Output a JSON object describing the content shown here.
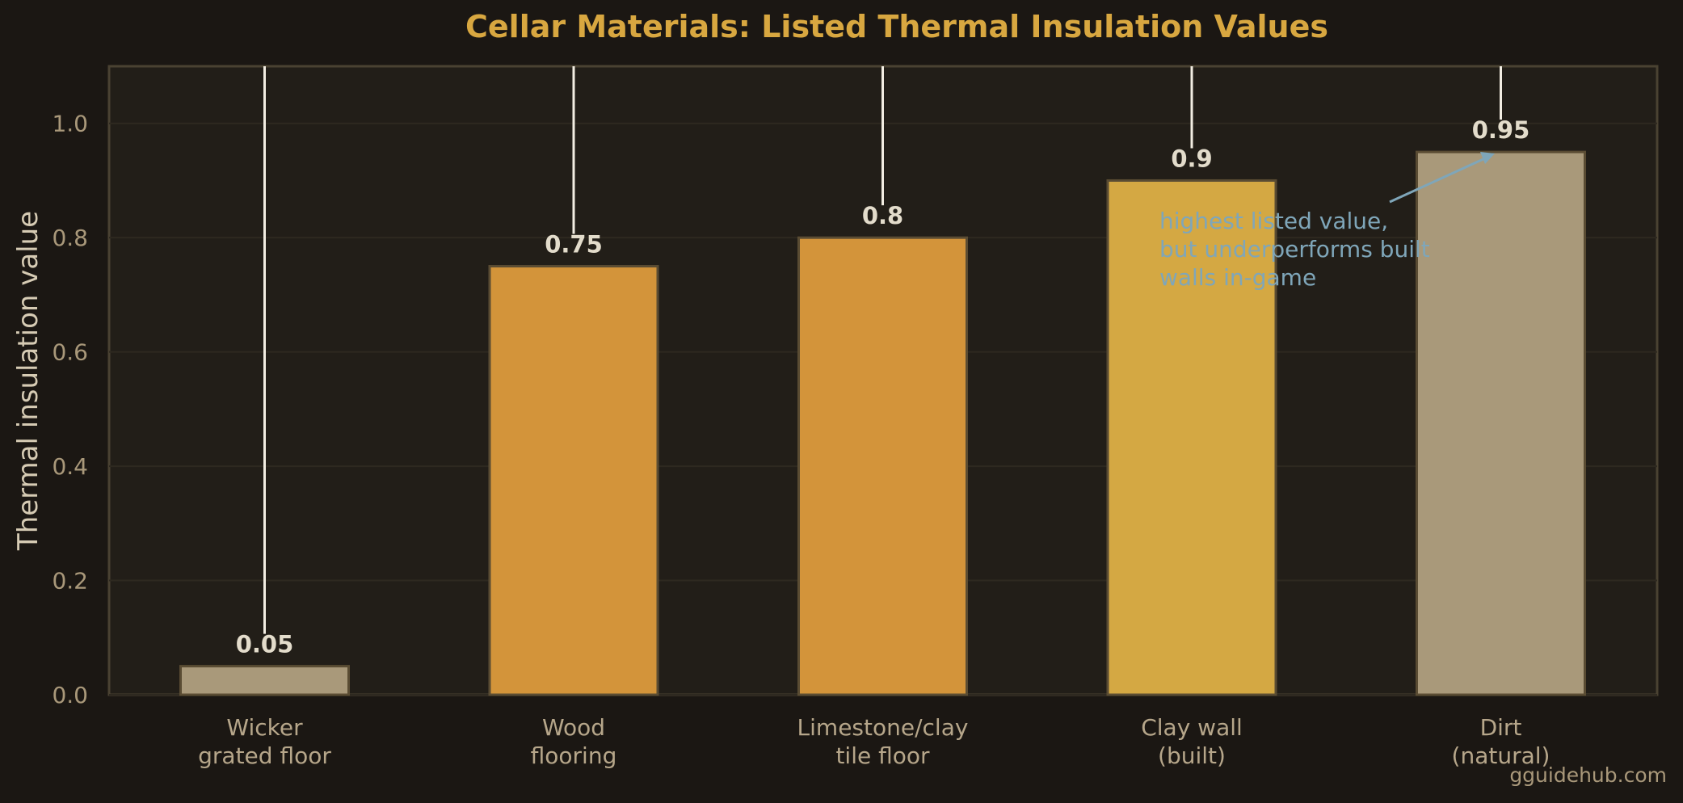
{
  "chart_data": {
    "type": "bar",
    "title": "Cellar Materials: Listed Thermal Insulation Values",
    "xlabel": "",
    "ylabel": "Thermal insulation value",
    "ylim": [
      0,
      1.1
    ],
    "yticks": [
      "0.0",
      "0.2",
      "0.4",
      "0.6",
      "0.8",
      "1.0"
    ],
    "categories": [
      [
        "Wicker",
        "grated floor"
      ],
      [
        "Wood",
        "flooring"
      ],
      [
        "Limestone/clay",
        "tile floor"
      ],
      [
        "Clay wall",
        "(built)"
      ],
      [
        "Dirt",
        "(natural)"
      ]
    ],
    "values": [
      0.05,
      0.75,
      0.8,
      0.9,
      0.95
    ],
    "value_labels": [
      "0.05",
      "0.75",
      "0.8",
      "0.9",
      "0.95"
    ],
    "bar_colors": [
      "#a9997a",
      "#d3943a",
      "#d3943a",
      "#d4a843",
      "#a9997a"
    ],
    "grid": true,
    "annotation": {
      "lines": [
        "highest listed value,",
        "but underperforms built",
        "walls in-game"
      ],
      "points_to_category": 4
    }
  },
  "watermark": "gguidehub.com",
  "colors": {
    "background": "#1b1713",
    "plot_background": "#221e18",
    "axis_frame": "#4a4232",
    "grid": "#2e2920",
    "title": "#d8a740",
    "annotation": "#7fa6b9"
  }
}
